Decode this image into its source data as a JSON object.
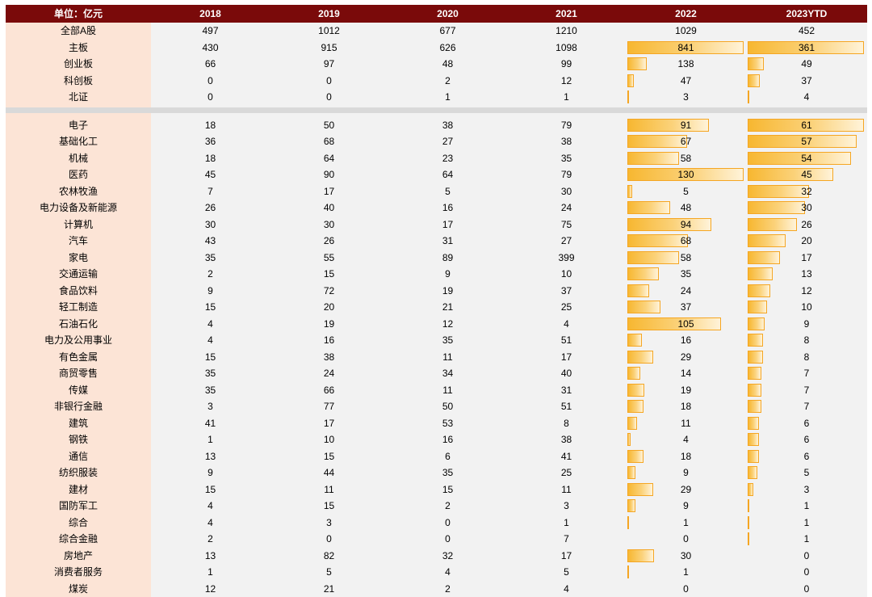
{
  "header": {
    "unit_label": "单位：亿元",
    "columns": [
      "2018",
      "2019",
      "2020",
      "2021",
      "2022",
      "2023YTD"
    ]
  },
  "market_rows": [
    {
      "name": "全部A股",
      "values": [
        497,
        1012,
        677,
        1210,
        1029,
        452
      ],
      "bars": false
    },
    {
      "name": "主板",
      "values": [
        430,
        915,
        626,
        1098,
        841,
        361
      ],
      "bars": true
    },
    {
      "name": "创业板",
      "values": [
        66,
        97,
        48,
        99,
        138,
        49
      ],
      "bars": true
    },
    {
      "name": "科创板",
      "values": [
        0,
        0,
        2,
        12,
        47,
        37
      ],
      "bars": true
    },
    {
      "name": "北证",
      "values": [
        0,
        0,
        1,
        1,
        3,
        4
      ],
      "bars": true
    }
  ],
  "industry_rows": [
    {
      "name": "电子",
      "values": [
        18,
        50,
        38,
        79,
        91,
        61
      ]
    },
    {
      "name": "基础化工",
      "values": [
        36,
        68,
        27,
        38,
        67,
        57
      ]
    },
    {
      "name": "机械",
      "values": [
        18,
        64,
        23,
        35,
        58,
        54
      ]
    },
    {
      "name": "医药",
      "values": [
        45,
        90,
        64,
        79,
        130,
        45
      ]
    },
    {
      "name": "农林牧渔",
      "values": [
        7,
        17,
        5,
        30,
        5,
        32
      ]
    },
    {
      "name": "电力设备及新能源",
      "values": [
        26,
        40,
        16,
        24,
        48,
        30
      ]
    },
    {
      "name": "计算机",
      "values": [
        30,
        30,
        17,
        75,
        94,
        26
      ]
    },
    {
      "name": "汽车",
      "values": [
        43,
        26,
        31,
        27,
        68,
        20
      ]
    },
    {
      "name": "家电",
      "values": [
        35,
        55,
        89,
        399,
        58,
        17
      ]
    },
    {
      "name": "交通运输",
      "values": [
        2,
        15,
        9,
        10,
        35,
        13
      ]
    },
    {
      "name": "食品饮料",
      "values": [
        9,
        72,
        19,
        37,
        24,
        12
      ]
    },
    {
      "name": "轻工制造",
      "values": [
        15,
        20,
        21,
        25,
        37,
        10
      ]
    },
    {
      "name": "石油石化",
      "values": [
        4,
        19,
        12,
        4,
        105,
        9
      ]
    },
    {
      "name": "电力及公用事业",
      "values": [
        4,
        16,
        35,
        51,
        16,
        8
      ]
    },
    {
      "name": "有色金属",
      "values": [
        15,
        38,
        11,
        17,
        29,
        8
      ]
    },
    {
      "name": "商贸零售",
      "values": [
        35,
        24,
        34,
        40,
        14,
        7
      ]
    },
    {
      "name": "传媒",
      "values": [
        35,
        66,
        11,
        31,
        19,
        7
      ]
    },
    {
      "name": "非银行金融",
      "values": [
        3,
        77,
        50,
        51,
        18,
        7
      ]
    },
    {
      "name": "建筑",
      "values": [
        41,
        17,
        53,
        8,
        11,
        6
      ]
    },
    {
      "name": "钢铁",
      "values": [
        1,
        10,
        16,
        38,
        4,
        6
      ]
    },
    {
      "name": "通信",
      "values": [
        13,
        15,
        6,
        41,
        18,
        6
      ]
    },
    {
      "name": "纺织服装",
      "values": [
        9,
        44,
        35,
        25,
        9,
        5
      ]
    },
    {
      "name": "建材",
      "values": [
        15,
        11,
        15,
        11,
        29,
        3
      ]
    },
    {
      "name": "国防军工",
      "values": [
        4,
        15,
        2,
        3,
        9,
        1
      ]
    },
    {
      "name": "综合",
      "values": [
        4,
        3,
        0,
        1,
        1,
        1
      ]
    },
    {
      "name": "综合金融",
      "values": [
        2,
        0,
        0,
        7,
        0,
        1
      ]
    },
    {
      "name": "房地产",
      "values": [
        13,
        82,
        32,
        17,
        30,
        0
      ]
    },
    {
      "name": "消费者服务",
      "values": [
        1,
        5,
        4,
        5,
        1,
        0
      ]
    },
    {
      "name": "煤炭",
      "values": [
        12,
        21,
        2,
        4,
        0,
        0
      ]
    }
  ],
  "colors": {
    "header_bg": "#7a0a0a",
    "name_col_bg": "#fce4d6",
    "body_bg": "#f2f2f2",
    "separator": "#d9d9d9",
    "bar": "#f7b731"
  }
}
